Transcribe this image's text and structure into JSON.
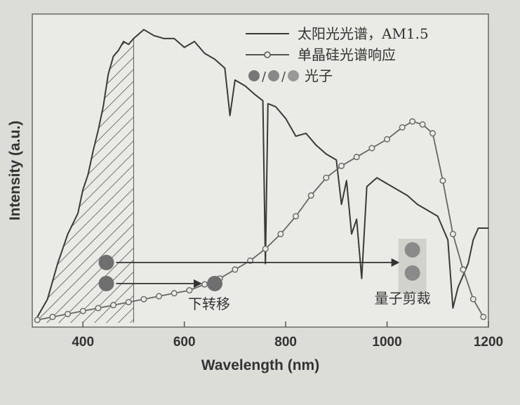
{
  "chart_data": {
    "type": "line",
    "xlabel": "Wavelength (nm)",
    "ylabel": "Intensity (a.u.)",
    "xlim": [
      300,
      1200
    ],
    "ylim": [
      0,
      1
    ],
    "xticks": [
      400,
      600,
      800,
      1000,
      1200
    ],
    "xtick_labels": [
      "400",
      "600",
      "800",
      "1000",
      "1200"
    ],
    "legend": {
      "placement": "top-right",
      "entries": [
        {
          "label": "太阳光光谱，AM1.5",
          "marker": "line"
        },
        {
          "label": "单晶硅光谱响应",
          "marker": "line-open-circle"
        },
        {
          "label": "光子",
          "marker": "circles",
          "glyph": "●/●/●"
        }
      ]
    },
    "series": [
      {
        "name": "太阳光光谱，AM1.5",
        "style": "solid",
        "color": "#3a3a3a",
        "x": [
          310,
          330,
          350,
          370,
          390,
          400,
          410,
          420,
          430,
          440,
          450,
          460,
          470,
          480,
          490,
          500,
          520,
          540,
          560,
          580,
          600,
          620,
          640,
          660,
          680,
          690,
          700,
          720,
          740,
          755,
          760,
          765,
          780,
          800,
          820,
          840,
          860,
          880,
          900,
          910,
          920,
          930,
          940,
          950,
          960,
          980,
          1000,
          1020,
          1040,
          1060,
          1080,
          1100,
          1120,
          1130,
          1140,
          1150,
          1160,
          1170,
          1180,
          1200
        ],
        "y": [
          0.02,
          0.08,
          0.2,
          0.3,
          0.37,
          0.45,
          0.5,
          0.58,
          0.65,
          0.73,
          0.84,
          0.9,
          0.92,
          0.95,
          0.94,
          0.96,
          0.99,
          0.97,
          0.96,
          0.96,
          0.93,
          0.95,
          0.91,
          0.89,
          0.86,
          0.7,
          0.82,
          0.8,
          0.77,
          0.75,
          0.2,
          0.74,
          0.73,
          0.69,
          0.63,
          0.64,
          0.6,
          0.57,
          0.55,
          0.4,
          0.48,
          0.3,
          0.35,
          0.15,
          0.46,
          0.49,
          0.47,
          0.45,
          0.43,
          0.4,
          0.38,
          0.36,
          0.28,
          0.05,
          0.12,
          0.16,
          0.2,
          0.28,
          0.32,
          0.32
        ]
      },
      {
        "name": "单晶硅光谱响应",
        "style": "line-open-circle",
        "color": "#666666",
        "x": [
          310,
          340,
          370,
          400,
          430,
          460,
          490,
          520,
          550,
          580,
          610,
          640,
          670,
          700,
          730,
          760,
          790,
          820,
          850,
          880,
          910,
          940,
          970,
          1000,
          1030,
          1050,
          1070,
          1090,
          1110,
          1130,
          1150,
          1170,
          1190
        ],
        "y": [
          0.01,
          0.02,
          0.03,
          0.04,
          0.05,
          0.06,
          0.07,
          0.08,
          0.09,
          0.1,
          0.11,
          0.13,
          0.15,
          0.18,
          0.21,
          0.25,
          0.3,
          0.36,
          0.43,
          0.49,
          0.53,
          0.56,
          0.59,
          0.62,
          0.66,
          0.68,
          0.67,
          0.64,
          0.48,
          0.3,
          0.18,
          0.08,
          0.02
        ]
      }
    ],
    "shaded_region": {
      "x_from": 300,
      "x_to": 500,
      "fill": "hatched",
      "under": "太阳光光谱，AM1.5"
    },
    "annotations": [
      {
        "text": "下转移",
        "arrow_from_x": 435,
        "arrow_to_x": 660
      },
      {
        "text": "量子剪裁",
        "arrow_from_x": 435,
        "arrow_to_x": 1050
      }
    ]
  }
}
